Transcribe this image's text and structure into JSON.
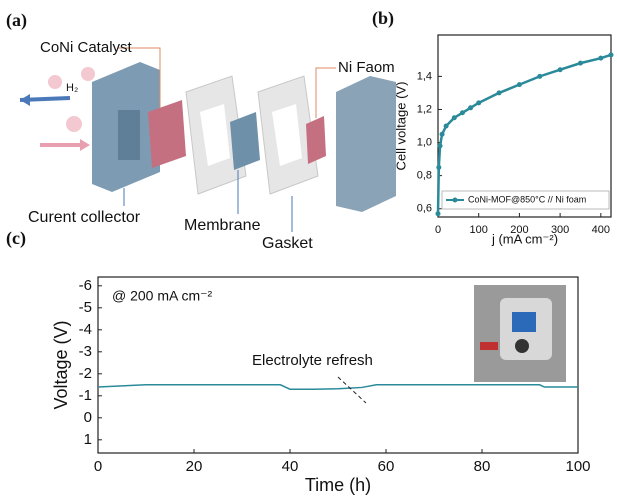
{
  "labels": [
    "(a)",
    "(b)",
    "(c)"
  ],
  "diagram": {
    "catalyst": "CoNi Catalyst",
    "foam": "Ni Faom",
    "gas": "H₂",
    "collector": "Curent collector",
    "membrane": "Membrane",
    "gasket": "Gasket"
  },
  "chart_data": [
    {
      "type": "line",
      "x_label": "j (mA cm⁻²)",
      "y_label": "Cell voltage (V)",
      "legend": "CoNi-MOF@850°C // Ni foam",
      "color": "#2a8a9a",
      "x": [
        0,
        2,
        5,
        10,
        20,
        40,
        60,
        80,
        100,
        150,
        200,
        250,
        300,
        350,
        400,
        425
      ],
      "values": [
        0.57,
        0.85,
        0.98,
        1.05,
        1.1,
        1.15,
        1.18,
        1.21,
        1.24,
        1.3,
        1.35,
        1.4,
        1.44,
        1.48,
        1.51,
        1.53
      ],
      "xlim": [
        0,
        425
      ],
      "ylim": [
        0.55,
        1.65
      ],
      "xticks": [
        0,
        100,
        200,
        300,
        400
      ],
      "yticks": [
        {
          "value": 0.6,
          "label": "0,6"
        },
        {
          "value": 0.8,
          "label": "0,8"
        },
        {
          "value": 1.0,
          "label": "1,0"
        },
        {
          "value": 1.2,
          "label": "1,2"
        },
        {
          "value": 1.4,
          "label": "1,4"
        }
      ]
    },
    {
      "type": "line",
      "x_label": "Time (h)",
      "y_label": "Voltage (V)",
      "annotations": [
        "@ 200 mA cm⁻²",
        "Electrolyte refresh"
      ],
      "color": "#2a8a9a",
      "x": [
        0,
        5,
        10,
        20,
        30,
        38,
        40,
        45,
        50,
        55,
        58,
        60,
        70,
        80,
        90,
        92,
        93,
        100
      ],
      "values": [
        -1.4,
        -1.45,
        -1.5,
        -1.5,
        -1.5,
        -1.5,
        -1.3,
        -1.3,
        -1.32,
        -1.38,
        -1.5,
        -1.5,
        -1.5,
        -1.5,
        -1.5,
        -1.5,
        -1.4,
        -1.4
      ],
      "xlim": [
        0,
        100
      ],
      "ylim": [
        1.6,
        -6.4
      ],
      "xticks": [
        0,
        20,
        40,
        60,
        80,
        100
      ],
      "yticks": [
        -6,
        -5,
        -4,
        -3,
        -2,
        -1,
        0,
        1
      ]
    }
  ]
}
